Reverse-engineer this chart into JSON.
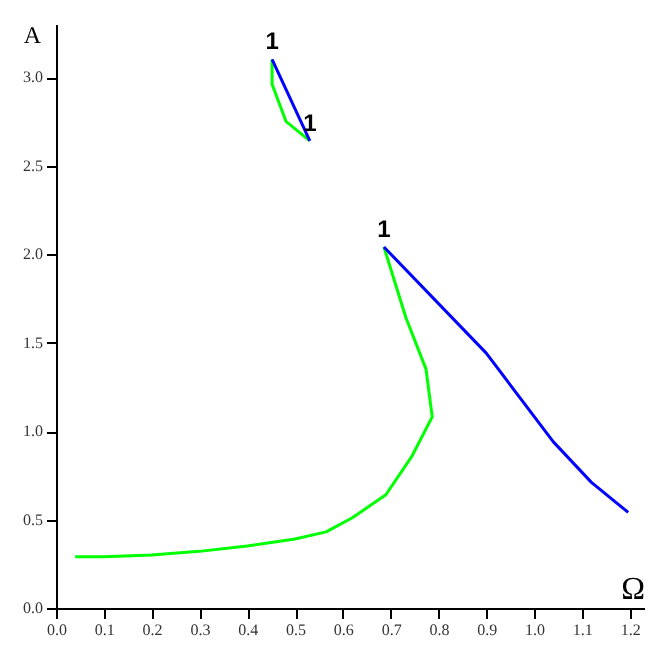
{
  "chart_data": {
    "type": "line",
    "xlabel": "Ω",
    "ylabel": "A",
    "xlim": [
      0,
      1.23
    ],
    "ylim": [
      0,
      3.3
    ],
    "xticks": [
      {
        "value": 0,
        "label": "0.0"
      },
      0.1,
      0.2,
      0.3,
      0.4,
      0.5,
      0.6,
      0.7,
      0.8,
      0.9,
      {
        "value": 1,
        "label": "1.0"
      },
      1.1,
      1.2
    ],
    "yticks": [
      {
        "value": 0,
        "label": "0.0"
      },
      0.5,
      {
        "value": 1,
        "label": "1.0"
      },
      1.5,
      {
        "value": 2,
        "label": "2.0"
      },
      2.5,
      {
        "value": 3,
        "label": "3.0"
      }
    ],
    "grid": false,
    "line_style": "solid",
    "series": [
      {
        "color": "#00ff00",
        "x": [
          0.04,
          0.1,
          0.2,
          0.3,
          0.4,
          0.5,
          0.565,
          0.62,
          0.69,
          0.745,
          0.787,
          0.774,
          0.732,
          0.686
        ],
        "values": [
          0.29,
          0.29,
          0.3,
          0.32,
          0.35,
          0.39,
          0.43,
          0.51,
          0.64,
          0.86,
          1.08,
          1.35,
          1.64,
          2.04
        ]
      },
      {
        "color": "#0000ff",
        "x": [
          0.686,
          0.9,
          1.04,
          1.12,
          1.197
        ],
        "values": [
          2.04,
          1.44,
          0.94,
          0.71,
          0.54
        ]
      },
      {
        "color": "#00ff00",
        "x": [
          0.452,
          0.452,
          0.481,
          0.531
        ],
        "values": [
          3.1,
          2.96,
          2.75,
          2.64
        ]
      },
      {
        "color": "#0000ff",
        "x": [
          0.452,
          0.531
        ],
        "values": [
          3.1,
          2.64
        ]
      }
    ],
    "annotations": [
      {
        "text": "1",
        "x": 0.452,
        "y": 3.1
      },
      {
        "text": "1",
        "x": 0.531,
        "y": 2.64
      },
      {
        "text": "1",
        "x": 0.686,
        "y": 2.04
      }
    ]
  }
}
